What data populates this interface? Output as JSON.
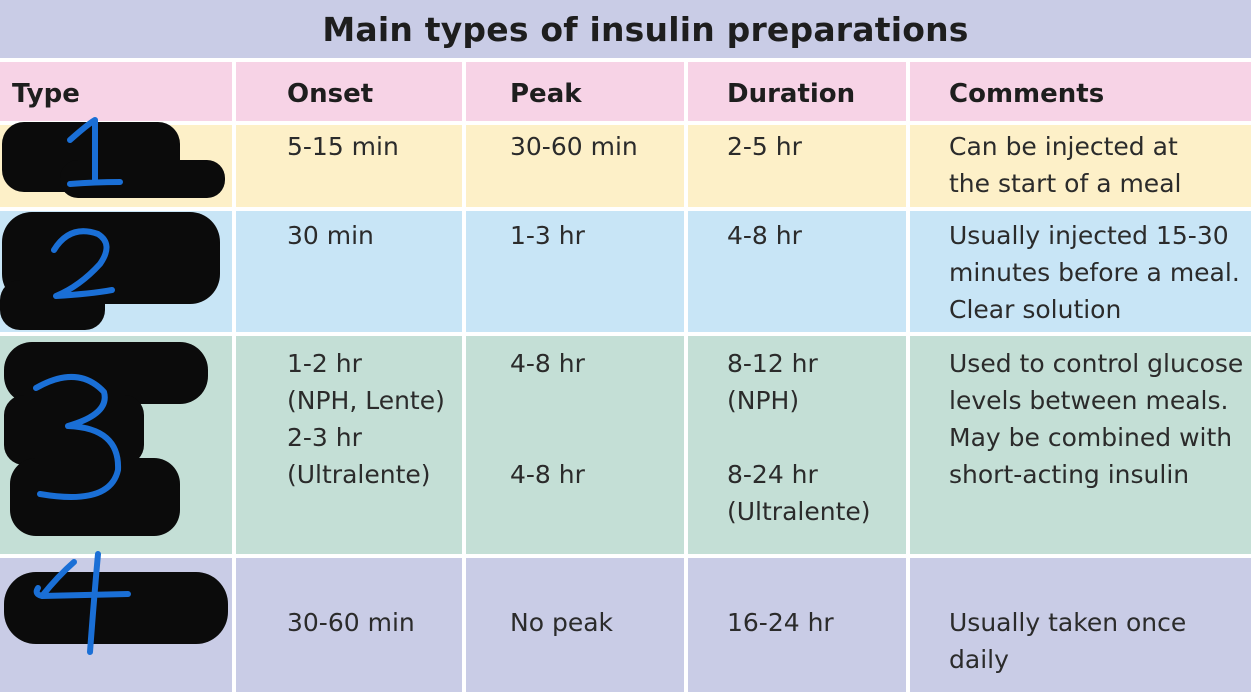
{
  "title": "Main types of insulin preparations",
  "headers": {
    "type": "Type",
    "onset": "Onset",
    "peak": "Peak",
    "duration": "Duration",
    "comments": "Comments"
  },
  "rows": [
    {
      "handwritten_type": "1",
      "onset": "5-15 min",
      "peak": "30-60 min",
      "duration": "2-5 hr",
      "comments": "Can be injected at\nthe start of a meal"
    },
    {
      "handwritten_type": "2",
      "onset": "30 min",
      "peak": "1-3 hr",
      "duration": "4-8 hr",
      "comments": "Usually injected 15-30\nminutes before a meal.\nClear solution"
    },
    {
      "handwritten_type": "3",
      "onset": "1-2 hr\n(NPH, Lente)\n2-3 hr\n(Ultralente)",
      "peak_a": "4-8 hr",
      "peak_b": "4-8 hr",
      "duration_a": "8-12 hr\n(NPH)",
      "duration_b": "8-24 hr\n(Ultralente)",
      "comments": "Used to control glucose\nlevels between meals.\nMay be combined with\nshort-acting insulin"
    },
    {
      "handwritten_type": "4",
      "onset": "30-60 min",
      "peak": "No peak",
      "duration": "16-24 hr",
      "comments": "Usually taken once\ndaily"
    }
  ],
  "colors": {
    "title_band": "#c9cce6",
    "header_row": "#f7d3e6",
    "row_1": "#fdf0c8",
    "row_2": "#c8e5f6",
    "row_3": "#c4dfd6",
    "row_4": "#c9cce6",
    "redaction": "#0b0b0b",
    "handwriting": "#1a6fd6"
  }
}
